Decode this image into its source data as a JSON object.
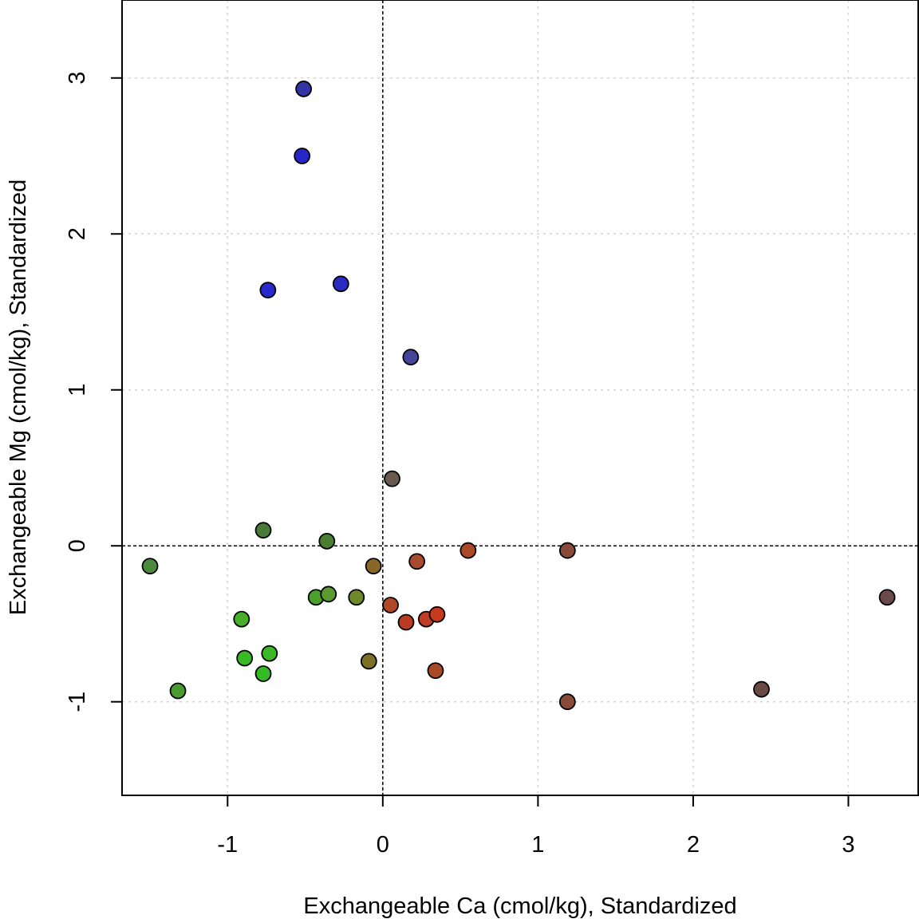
{
  "chart_data": {
    "type": "scatter",
    "title": "",
    "xlabel": "Exchangeable Ca (cmol/kg), Standardized",
    "ylabel": "Exchangeable Mg (cmol/kg), Standardized",
    "xlim": [
      -1.68,
      3.45
    ],
    "ylim": [
      -1.6,
      3.5
    ],
    "x_ticks": [
      -1,
      0,
      1,
      2,
      3
    ],
    "y_ticks": [
      -1,
      0,
      1,
      2,
      3
    ],
    "x_tick_labels": [
      "-1",
      "0",
      "1",
      "2",
      "3"
    ],
    "y_tick_labels": [
      "-1",
      "0",
      "1",
      "2",
      "3"
    ],
    "grid": true,
    "reference_lines": {
      "x": 0,
      "y": 0
    },
    "points": [
      {
        "x": -0.51,
        "y": 2.93,
        "color": "#3434a4"
      },
      {
        "x": -0.52,
        "y": 2.5,
        "color": "#2626c8"
      },
      {
        "x": -0.74,
        "y": 1.64,
        "color": "#2828cc"
      },
      {
        "x": -0.27,
        "y": 1.68,
        "color": "#2a2ac4"
      },
      {
        "x": 0.18,
        "y": 1.21,
        "color": "#44449a"
      },
      {
        "x": 0.06,
        "y": 0.43,
        "color": "#6a5a4e"
      },
      {
        "x": -0.77,
        "y": 0.1,
        "color": "#4a7a3a"
      },
      {
        "x": -0.36,
        "y": 0.03,
        "color": "#4a7e30"
      },
      {
        "x": -1.5,
        "y": -0.13,
        "color": "#4a8a3c"
      },
      {
        "x": -0.06,
        "y": -0.13,
        "color": "#8a6628"
      },
      {
        "x": 0.22,
        "y": -0.1,
        "color": "#a84a2e"
      },
      {
        "x": 0.55,
        "y": -0.03,
        "color": "#aa4828"
      },
      {
        "x": 1.19,
        "y": -0.03,
        "color": "#8a4a3a"
      },
      {
        "x": -0.43,
        "y": -0.33,
        "color": "#4aa02a"
      },
      {
        "x": -0.35,
        "y": -0.31,
        "color": "#5a9a30"
      },
      {
        "x": -0.17,
        "y": -0.33,
        "color": "#6e8a2a"
      },
      {
        "x": 0.05,
        "y": -0.38,
        "color": "#b04828"
      },
      {
        "x": 3.25,
        "y": -0.33,
        "color": "#6a4a4a"
      },
      {
        "x": -0.91,
        "y": -0.47,
        "color": "#48b028"
      },
      {
        "x": 0.15,
        "y": -0.49,
        "color": "#b83c22"
      },
      {
        "x": 0.28,
        "y": -0.47,
        "color": "#c03c22"
      },
      {
        "x": 0.35,
        "y": -0.44,
        "color": "#c83a1c"
      },
      {
        "x": -0.89,
        "y": -0.72,
        "color": "#38b822"
      },
      {
        "x": -0.73,
        "y": -0.69,
        "color": "#3cb826"
      },
      {
        "x": -0.77,
        "y": -0.82,
        "color": "#34ba24"
      },
      {
        "x": -1.32,
        "y": -0.93,
        "color": "#4a9a32"
      },
      {
        "x": -0.09,
        "y": -0.74,
        "color": "#7a7028"
      },
      {
        "x": 0.34,
        "y": -0.8,
        "color": "#a84a28"
      },
      {
        "x": 1.19,
        "y": -1.0,
        "color": "#8a4a3a"
      },
      {
        "x": 2.44,
        "y": -0.92,
        "color": "#6a4a44"
      }
    ]
  }
}
